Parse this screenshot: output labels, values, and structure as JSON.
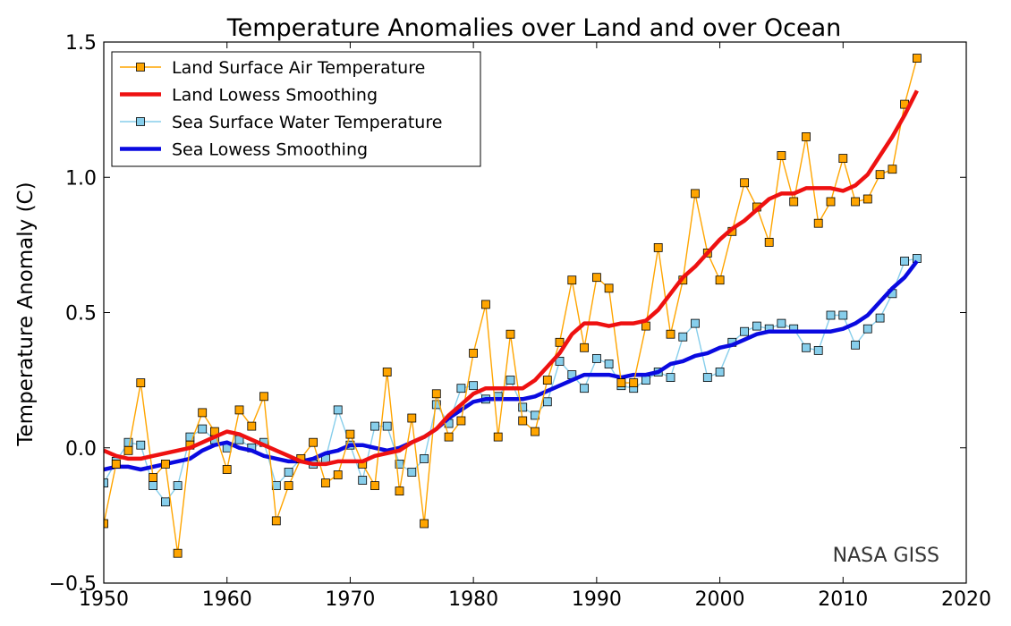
{
  "chart_data": {
    "type": "line",
    "title": "Temperature Anomalies over Land and over Ocean",
    "xlabel": "",
    "ylabel": "Temperature Anomaly (C)",
    "xlim": [
      1950,
      2020
    ],
    "ylim": [
      -0.5,
      1.5
    ],
    "xticks": [
      "1950",
      "1960",
      "1970",
      "1980",
      "1990",
      "2000",
      "2010",
      "2020"
    ],
    "yticks": [
      "−0.5",
      "0.0",
      "0.5",
      "1.0",
      "1.5"
    ],
    "grid": false,
    "legend_position": "top-left",
    "watermark": "NASA GISS",
    "x": [
      1950,
      1951,
      1952,
      1953,
      1954,
      1955,
      1956,
      1957,
      1958,
      1959,
      1960,
      1961,
      1962,
      1963,
      1964,
      1965,
      1966,
      1967,
      1968,
      1969,
      1970,
      1971,
      1972,
      1973,
      1974,
      1975,
      1976,
      1977,
      1978,
      1979,
      1980,
      1981,
      1982,
      1983,
      1984,
      1985,
      1986,
      1987,
      1988,
      1989,
      1990,
      1991,
      1992,
      1993,
      1994,
      1995,
      1996,
      1997,
      1998,
      1999,
      2000,
      2001,
      2002,
      2003,
      2004,
      2005,
      2006,
      2007,
      2008,
      2009,
      2010,
      2011,
      2012,
      2013,
      2014,
      2015,
      2016
    ],
    "series": [
      {
        "name": "Land Surface Air Temperature",
        "style": "markers",
        "color": "#ffa500",
        "marker_color": "#ffa500",
        "values": [
          -0.28,
          -0.06,
          -0.01,
          0.24,
          -0.11,
          -0.06,
          -0.39,
          0.01,
          0.13,
          0.06,
          -0.08,
          0.14,
          0.08,
          0.19,
          -0.27,
          -0.14,
          -0.04,
          0.02,
          -0.13,
          -0.1,
          0.05,
          -0.06,
          -0.14,
          0.28,
          -0.16,
          0.11,
          -0.28,
          0.2,
          0.04,
          0.1,
          0.35,
          0.53,
          0.04,
          0.42,
          0.1,
          0.06,
          0.25,
          0.39,
          0.62,
          0.37,
          0.63,
          0.59,
          0.24,
          0.24,
          0.45,
          0.74,
          0.42,
          0.62,
          0.94,
          0.72,
          0.62,
          0.8,
          0.98,
          0.89,
          0.76,
          1.08,
          0.91,
          1.15,
          0.83,
          0.91,
          1.07,
          0.91,
          0.92,
          1.01,
          1.03,
          1.27,
          1.44
        ]
      },
      {
        "name": "Land Lowess Smoothing",
        "style": "smooth",
        "color": "#ee1111",
        "values": [
          -0.01,
          -0.03,
          -0.04,
          -0.04,
          -0.03,
          -0.02,
          -0.01,
          0.0,
          0.02,
          0.04,
          0.06,
          0.05,
          0.03,
          0.01,
          -0.01,
          -0.03,
          -0.05,
          -0.06,
          -0.06,
          -0.05,
          -0.05,
          -0.05,
          -0.03,
          -0.02,
          -0.01,
          0.02,
          0.04,
          0.07,
          0.12,
          0.16,
          0.2,
          0.22,
          0.22,
          0.22,
          0.22,
          0.25,
          0.3,
          0.35,
          0.42,
          0.46,
          0.46,
          0.45,
          0.46,
          0.46,
          0.47,
          0.51,
          0.57,
          0.63,
          0.67,
          0.72,
          0.77,
          0.81,
          0.84,
          0.88,
          0.92,
          0.94,
          0.94,
          0.96,
          0.96,
          0.96,
          0.95,
          0.97,
          1.01,
          1.08,
          1.15,
          1.23,
          1.32
        ]
      },
      {
        "name": "Sea Surface Water Temperature",
        "style": "markers",
        "color": "#87ceeb",
        "marker_color": "#87ceeb",
        "values": [
          -0.13,
          -0.05,
          0.02,
          0.01,
          -0.14,
          -0.2,
          -0.14,
          0.04,
          0.07,
          0.03,
          0.0,
          0.03,
          0.0,
          0.02,
          -0.14,
          -0.09,
          -0.04,
          -0.06,
          -0.04,
          0.14,
          0.01,
          -0.12,
          0.08,
          0.08,
          -0.06,
          -0.09,
          -0.04,
          0.16,
          0.09,
          0.22,
          0.23,
          0.18,
          0.19,
          0.25,
          0.15,
          0.12,
          0.17,
          0.32,
          0.27,
          0.22,
          0.33,
          0.31,
          0.23,
          0.22,
          0.25,
          0.28,
          0.26,
          0.41,
          0.46,
          0.26,
          0.28,
          0.39,
          0.43,
          0.45,
          0.44,
          0.46,
          0.44,
          0.37,
          0.36,
          0.49,
          0.49,
          0.38,
          0.44,
          0.48,
          0.57,
          0.69,
          0.7
        ]
      },
      {
        "name": "Sea Lowess Smoothing",
        "style": "smooth",
        "color": "#0a0ae0",
        "values": [
          -0.08,
          -0.07,
          -0.07,
          -0.08,
          -0.07,
          -0.06,
          -0.05,
          -0.04,
          -0.01,
          0.01,
          0.02,
          0.0,
          -0.01,
          -0.03,
          -0.04,
          -0.05,
          -0.05,
          -0.04,
          -0.02,
          -0.01,
          0.01,
          0.01,
          0.0,
          -0.01,
          0.0,
          0.02,
          0.04,
          0.07,
          0.11,
          0.14,
          0.17,
          0.18,
          0.18,
          0.18,
          0.18,
          0.19,
          0.21,
          0.23,
          0.25,
          0.27,
          0.27,
          0.27,
          0.26,
          0.27,
          0.27,
          0.28,
          0.31,
          0.32,
          0.34,
          0.35,
          0.37,
          0.38,
          0.4,
          0.42,
          0.43,
          0.43,
          0.43,
          0.43,
          0.43,
          0.43,
          0.44,
          0.46,
          0.49,
          0.54,
          0.59,
          0.63,
          0.69
        ]
      }
    ]
  }
}
